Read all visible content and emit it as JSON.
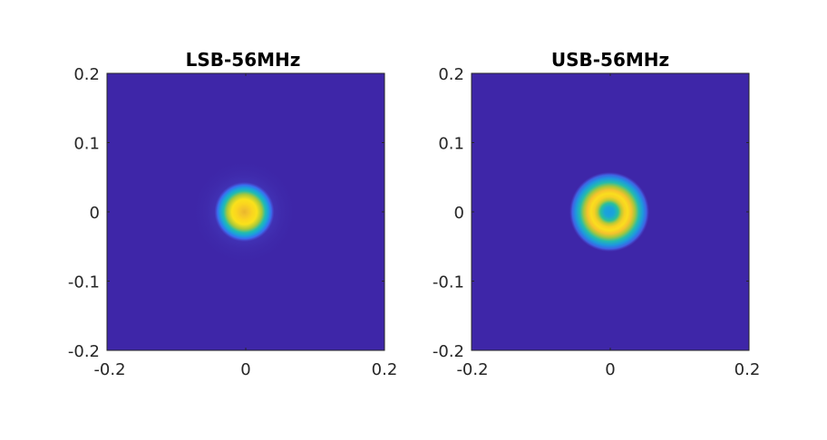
{
  "chart_data": [
    {
      "type": "heatmap",
      "title": "LSB-56MHz",
      "xlim": [
        -0.2,
        0.2
      ],
      "ylim": [
        -0.2,
        0.2
      ],
      "xticks": [
        "-0.2",
        "0",
        "0.2"
      ],
      "yticks": [
        "0.2",
        "0.1",
        "0",
        "-0.1",
        "-0.2"
      ],
      "colormap": "parula",
      "background_color": "#3e26a8",
      "pattern": {
        "shape": "ring",
        "center": [
          0,
          0
        ],
        "ring_radius": 0.008,
        "ring_width": 0.012,
        "peak_value": 0.97,
        "center_value": 0.85,
        "halo_radius": 0.05,
        "halo_value": 0.12
      }
    },
    {
      "type": "heatmap",
      "title": "USB-56MHz",
      "xlim": [
        -0.2,
        0.2
      ],
      "ylim": [
        -0.2,
        0.2
      ],
      "xticks": [
        "-0.2",
        "0",
        "0.2"
      ],
      "yticks": [
        "0.2",
        "0.1",
        "0",
        "-0.1",
        "-0.2"
      ],
      "colormap": "parula",
      "background_color": "#3e26a8",
      "pattern": {
        "shape": "ring",
        "center": [
          0,
          0
        ],
        "ring_radius": 0.02,
        "ring_width": 0.017,
        "peak_value": 0.96,
        "center_value": 0.3,
        "halo_radius": 0.03,
        "halo_value": 0.05
      }
    }
  ]
}
